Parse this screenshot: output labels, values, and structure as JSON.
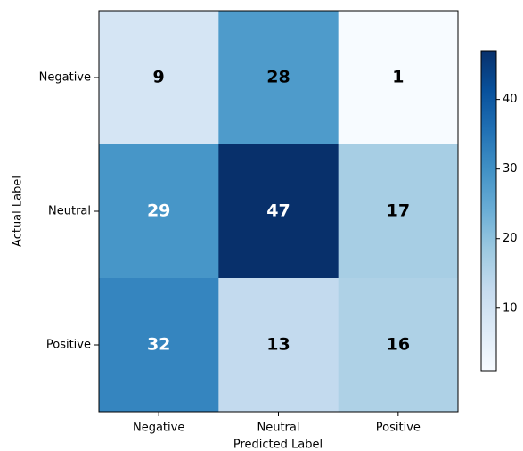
{
  "chart_data": {
    "type": "heatmap",
    "x_label": "Predicted Label",
    "y_label": "Actual Label",
    "x_categories": [
      "Negative",
      "Neutral",
      "Positive"
    ],
    "y_categories": [
      "Negative",
      "Neutral",
      "Positive"
    ],
    "values": [
      [
        9,
        28,
        1
      ],
      [
        29,
        47,
        17
      ],
      [
        32,
        13,
        16
      ]
    ],
    "colorscale": [
      "#f7fbff",
      "#deebf7",
      "#c6dbef",
      "#9ecae1",
      "#6baed6",
      "#4292c6",
      "#2171b5",
      "#08519c",
      "#08306b"
    ],
    "clim": [
      1,
      47
    ],
    "cticks": [
      10,
      20,
      30,
      40
    ]
  }
}
